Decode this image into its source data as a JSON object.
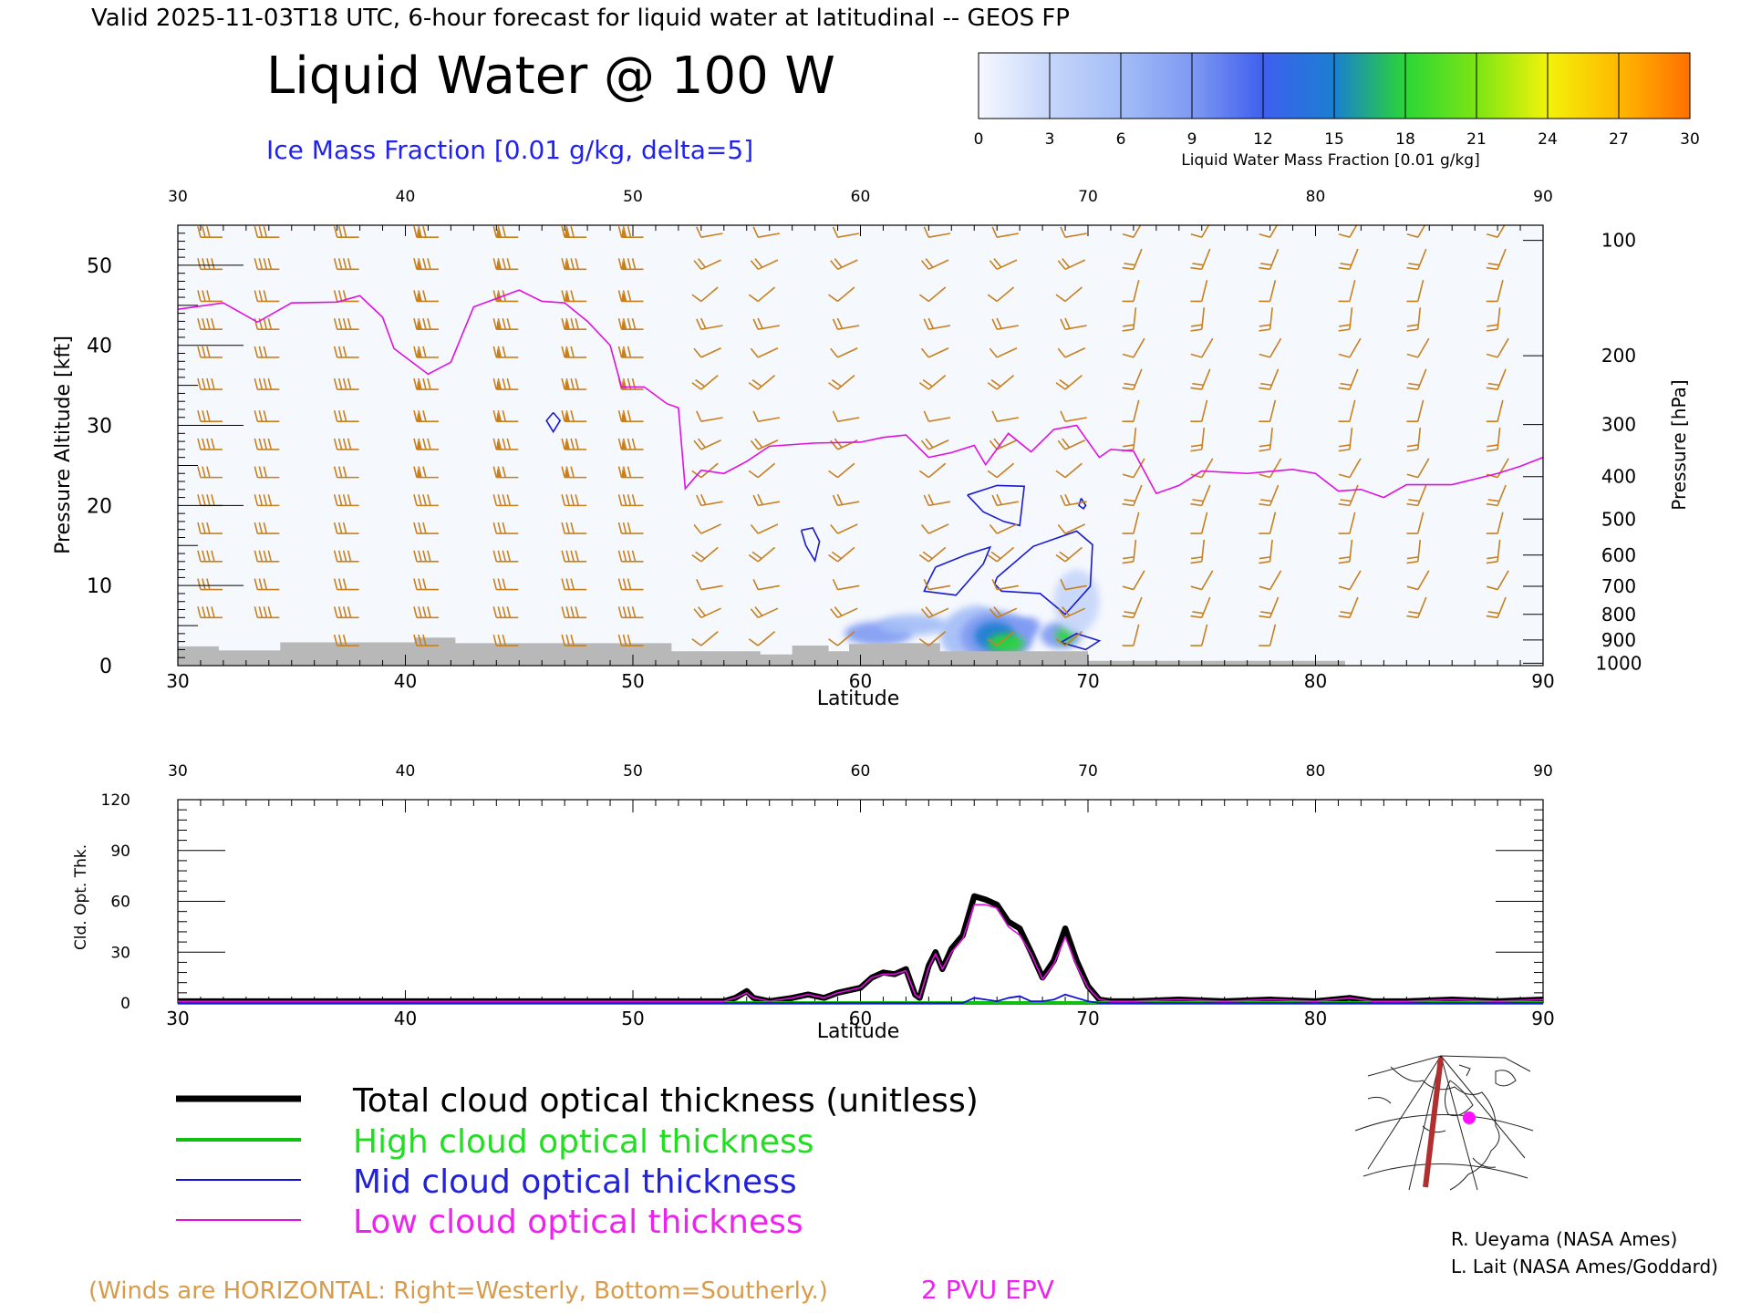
{
  "header": {
    "valid_line": "Valid 2025-11-03T18 UTC, 6-hour forecast for liquid water at latitudinal -- GEOS FP",
    "title": "Liquid Water @ 100 W",
    "subtitle": "Ice Mass Fraction [0.01 g/kg, delta=5]"
  },
  "colorbar": {
    "ticks": [
      "0",
      "3",
      "6",
      "9",
      "12",
      "15",
      "18",
      "21",
      "24",
      "27",
      "30"
    ],
    "label": "Liquid Water Mass Fraction [0.01 g/kg]",
    "colors": [
      "#f6f8ff",
      "#c6d6fa",
      "#a3bdf7",
      "#7f9af2",
      "#3f5ff0",
      "#1a7fd0",
      "#2bd636",
      "#7ce514",
      "#f2f20a",
      "#ffb800",
      "#ff7000"
    ]
  },
  "credits": [
    "R. Ueyama (NASA Ames)",
    "L. Lait (NASA Ames/Goddard)"
  ],
  "footer": {
    "winds_note": "(Winds are HORIZONTAL: Right=Westerly, Bottom=Southerly.)",
    "epv_label": "2 PVU EPV"
  },
  "legend": [
    {
      "label": "Total cloud optical thickness (unitless)",
      "color": "#000000",
      "text_color": "#000000",
      "width": 7
    },
    {
      "label": "High cloud optical thickness",
      "color": "#10c010",
      "text_color": "#22dd22",
      "width": 4
    },
    {
      "label": "Mid cloud optical thickness",
      "color": "#1010d8",
      "text_color": "#2222dd",
      "width": 2
    },
    {
      "label": "Low cloud optical thickness",
      "color": "#e010e0",
      "text_color": "#ee22ee",
      "width": 2
    }
  ],
  "colors": {
    "epv": "#e010e0",
    "ice_contour": "#1a1ad0",
    "wind": "#c8801e",
    "terrain": "#b8b8b8"
  },
  "chart_data": [
    {
      "type": "cross-section",
      "xlabel": "Latitude",
      "ylabel": "Pressure Altitude [kft]",
      "ylabel_right": "Pressure [hPa]",
      "xlim": [
        30,
        90
      ],
      "ylim": [
        0,
        55
      ],
      "x_ticks": [
        "30",
        "40",
        "50",
        "60",
        "70",
        "80",
        "90"
      ],
      "y_ticks": [
        "0",
        "10",
        "20",
        "30",
        "40",
        "50"
      ],
      "pressure_ticks": [
        "100",
        "200",
        "300",
        "400",
        "500",
        "600",
        "700",
        "800",
        "900",
        "1000"
      ],
      "pressure_levels_kft": [
        53.1,
        38.7,
        30.1,
        23.6,
        18.3,
        13.8,
        9.9,
        6.4,
        3.2,
        0.3
      ],
      "epv_2pvu": {
        "lat": [
          30,
          32,
          33.5,
          35,
          37,
          38,
          39,
          39.5,
          41,
          42,
          43,
          45,
          46,
          47,
          48,
          49,
          49.5,
          50.5,
          51.5,
          52,
          52.3,
          53,
          54,
          55,
          56,
          58,
          60,
          61,
          62,
          63,
          64,
          65,
          65.5,
          66.5,
          67.5,
          68.5,
          69.5,
          70.5,
          71,
          72,
          73,
          74,
          75,
          77,
          79,
          80,
          81,
          82,
          83,
          84,
          86,
          88,
          89,
          90
        ],
        "kft": [
          44.5,
          45.3,
          42.9,
          45.3,
          45.4,
          46.2,
          43.5,
          39.6,
          36.4,
          37.9,
          44.8,
          46.9,
          45.5,
          45.3,
          43.0,
          40.0,
          34.8,
          34.8,
          32.7,
          32.2,
          22.1,
          24.4,
          24.0,
          25.5,
          27.4,
          27.8,
          27.9,
          28.5,
          28.8,
          26.0,
          26.6,
          27.5,
          25.1,
          29.0,
          26.7,
          29.5,
          30.0,
          26.0,
          27.0,
          26.8,
          21.5,
          22.5,
          24.3,
          24.0,
          24.5,
          24.0,
          21.8,
          22.0,
          21.0,
          22.6,
          22.6,
          24.0,
          24.9,
          26.0
        ]
      },
      "ice_contours": [
        {
          "lat": [
            64.7,
            66.0,
            67.2,
            67.0,
            66.3,
            65.4,
            64.7
          ],
          "kft": [
            21.3,
            22.5,
            22.4,
            17.5,
            18.0,
            19.2,
            21.3
          ]
        },
        {
          "lat": [
            66.0,
            67.6,
            69.5,
            70.2,
            70.1,
            69.0,
            67.9,
            66.2,
            65.9,
            66.0
          ],
          "kft": [
            11.0,
            14.9,
            16.8,
            15.1,
            9.9,
            6.4,
            9.0,
            9.3,
            10.2,
            11.0
          ]
        },
        {
          "lat": [
            63.3,
            64.7,
            65.7,
            65.4,
            64.2,
            62.8,
            63.0,
            63.3
          ],
          "kft": [
            12.3,
            13.9,
            14.8,
            12.7,
            8.8,
            9.3,
            10.6,
            12.3
          ]
        },
        {
          "lat": [
            57.4,
            57.9,
            58.2,
            58.0,
            57.6,
            57.4
          ],
          "kft": [
            16.9,
            17.2,
            15.5,
            13.1,
            15.0,
            16.9
          ]
        },
        {
          "lat": [
            46.5,
            46.8,
            46.5,
            46.2,
            46.5
          ],
          "kft": [
            31.6,
            30.6,
            29.2,
            30.6,
            31.6
          ]
        },
        {
          "lat": [
            69.7,
            69.9,
            69.8,
            69.6,
            69.7
          ],
          "kft": [
            20.9,
            20.0,
            19.6,
            20.0,
            20.9
          ]
        },
        {
          "lat": [
            68.8,
            69.5,
            70.5,
            69.9,
            68.8
          ],
          "kft": [
            2.9,
            4.0,
            3.1,
            2.0,
            2.9
          ]
        }
      ],
      "liquid_water_blobs": [
        {
          "lat": 65.5,
          "kft": 3.8,
          "rlat": 2.0,
          "rkft": 3.8,
          "value": 5
        },
        {
          "lat": 66.0,
          "kft": 3.7,
          "rlat": 1.6,
          "rkft": 3.0,
          "value": 10
        },
        {
          "lat": 65.9,
          "kft": 3.7,
          "rlat": 0.9,
          "rkft": 1.8,
          "value": 14
        },
        {
          "lat": 66.4,
          "kft": 2.8,
          "rlat": 0.8,
          "rkft": 1.2,
          "value": 17
        },
        {
          "lat": 67.4,
          "kft": 4.9,
          "rlat": 0.5,
          "rkft": 1.2,
          "value": 9
        },
        {
          "lat": 60.8,
          "kft": 4.0,
          "rlat": 1.5,
          "rkft": 1.5,
          "value": 9
        },
        {
          "lat": 62.3,
          "kft": 5.1,
          "rlat": 1.5,
          "rkft": 1.3,
          "value": 5
        },
        {
          "lat": 68.8,
          "kft": 3.8,
          "rlat": 0.9,
          "rkft": 1.7,
          "value": 10
        },
        {
          "lat": 69.0,
          "kft": 3.8,
          "rlat": 0.4,
          "rkft": 1.0,
          "value": 17
        },
        {
          "lat": 67.2,
          "kft": 12.5,
          "rlat": 3.0,
          "rkft": 6.0,
          "value": 1
        },
        {
          "lat": 58.0,
          "kft": 9.5,
          "rlat": 1.2,
          "rkft": 1.5,
          "value": 1
        },
        {
          "lat": 69.5,
          "kft": 8.0,
          "rlat": 1.0,
          "rkft": 4.0,
          "value": 2
        }
      ],
      "terrain": {
        "lat": [
          30,
          31.8,
          31.8,
          34.5,
          34.5,
          40.4,
          40.4,
          42.2,
          42.2,
          51.7,
          51.7,
          55.6,
          55.6,
          57.0,
          57.0,
          58.6,
          58.6,
          59.5,
          59.5,
          60.4,
          60.4,
          63.5,
          63.5,
          70.0,
          70.0,
          81.3,
          81.3,
          90
        ],
        "kft": [
          2.4,
          2.4,
          1.9,
          1.9,
          2.9,
          2.9,
          3.5,
          3.5,
          2.8,
          2.8,
          1.8,
          1.8,
          1.4,
          1.4,
          2.5,
          2.5,
          1.8,
          1.8,
          2.7,
          2.7,
          2.8,
          2.8,
          1.8,
          1.8,
          0.6,
          0.6,
          0,
          0
        ]
      },
      "wind_columns_lat": [
        31,
        33.5,
        37,
        40.5,
        44,
        47,
        49.5,
        53,
        55.5,
        59,
        63,
        66,
        69,
        72,
        75,
        78,
        81.5,
        84.5,
        88
      ],
      "wind_levels_kft": [
        53.5,
        49.5,
        45.5,
        42,
        38.5,
        34.5,
        30.5,
        27,
        23.5,
        20,
        16.5,
        13,
        9.5,
        6,
        2.5
      ]
    },
    {
      "type": "line",
      "xlabel": "Latitude",
      "ylabel": "Cld. Opt. Thk.",
      "xlim": [
        30,
        90
      ],
      "ylim": [
        0,
        120
      ],
      "x_ticks": [
        "30",
        "40",
        "50",
        "60",
        "70",
        "80",
        "90"
      ],
      "y_ticks": [
        "0",
        "30",
        "60",
        "90",
        "120"
      ],
      "x": [
        30,
        40,
        50,
        54,
        54.5,
        55,
        55.3,
        56,
        57,
        57.7,
        58.4,
        59,
        60,
        60.5,
        61,
        61.5,
        62,
        62.4,
        62.6,
        63,
        63.3,
        63.6,
        64,
        64.5,
        65,
        65.5,
        66,
        66.5,
        67,
        67.5,
        68,
        68.5,
        69,
        69.5,
        70,
        70.5,
        71,
        72,
        74,
        76,
        78,
        80,
        81.5,
        82.5,
        84,
        86,
        88,
        90
      ],
      "series": [
        {
          "name": "Total cloud optical thickness (unitless)",
          "values": [
            1,
            1,
            1,
            1,
            3,
            7,
            3,
            1,
            3,
            5,
            3,
            6,
            9,
            15,
            18,
            17,
            20,
            5,
            3,
            22,
            30,
            20,
            32,
            40,
            63,
            61,
            58,
            48,
            44,
            30,
            15,
            25,
            44,
            25,
            10,
            2,
            1,
            1,
            2,
            1,
            2,
            1,
            3,
            1,
            1,
            2,
            1,
            2
          ]
        },
        {
          "name": "High cloud optical thickness",
          "values": [
            0,
            0,
            0,
            0,
            0,
            0,
            0,
            0,
            0,
            0,
            0,
            0,
            0,
            0,
            0,
            0,
            0,
            0,
            0,
            0,
            0,
            0,
            0,
            0,
            0,
            0,
            0,
            0,
            0,
            0,
            0,
            0,
            0,
            0,
            0,
            0,
            0,
            0,
            0,
            0,
            0,
            0,
            0,
            0,
            0,
            0,
            0,
            0
          ]
        },
        {
          "name": "Mid cloud optical thickness",
          "values": [
            0,
            0,
            0,
            0,
            0,
            0,
            0,
            0,
            0,
            0,
            0,
            0,
            0,
            0,
            0,
            0,
            0,
            0,
            0,
            0,
            0,
            0,
            0,
            0,
            3,
            2,
            1,
            3,
            4,
            1,
            1,
            2,
            5,
            3,
            1,
            0,
            0,
            0,
            0,
            0,
            0,
            0,
            0,
            0,
            0,
            0,
            0,
            0
          ]
        },
        {
          "name": "Low cloud optical thickness",
          "values": [
            1,
            1,
            1,
            1,
            3,
            6,
            3,
            1,
            3,
            5,
            3,
            6,
            9,
            15,
            17,
            17,
            19,
            5,
            3,
            21,
            29,
            20,
            30,
            38,
            58,
            58,
            56,
            45,
            40,
            29,
            14,
            23,
            39,
            22,
            9,
            2,
            1,
            1,
            2,
            1,
            2,
            1,
            3,
            1,
            1,
            2,
            1,
            2
          ]
        }
      ]
    }
  ]
}
